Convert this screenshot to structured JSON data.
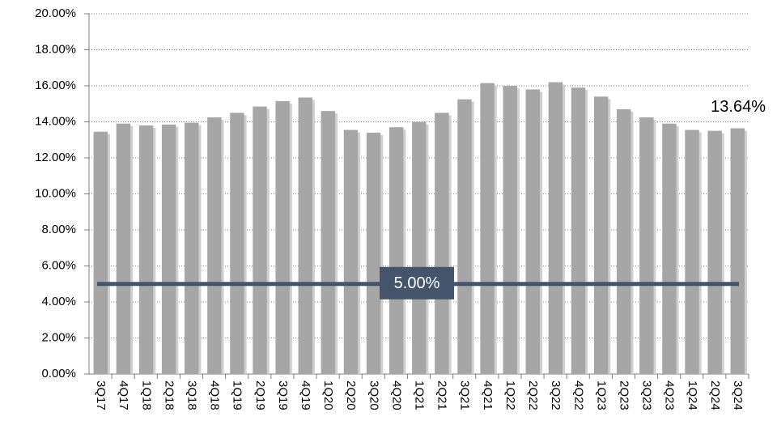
{
  "chart_data": {
    "type": "bar",
    "categories": [
      "3Q17",
      "4Q17",
      "1Q18",
      "2Q18",
      "3Q18",
      "4Q18",
      "1Q19",
      "2Q19",
      "3Q19",
      "4Q19",
      "1Q20",
      "2Q20",
      "3Q20",
      "4Q20",
      "1Q21",
      "2Q21",
      "3Q21",
      "4Q21",
      "1Q22",
      "2Q22",
      "3Q22",
      "4Q22",
      "1Q23",
      "2Q23",
      "3Q23",
      "4Q23",
      "1Q24",
      "2Q24",
      "3Q24"
    ],
    "values": [
      13.45,
      13.9,
      13.8,
      13.85,
      13.95,
      14.25,
      14.5,
      14.85,
      15.15,
      15.35,
      14.6,
      13.55,
      13.4,
      13.7,
      14.0,
      14.5,
      15.25,
      16.15,
      16.0,
      15.8,
      16.2,
      15.9,
      15.4,
      14.7,
      14.25,
      13.9,
      13.55,
      13.5,
      13.64
    ],
    "value_labels": [
      null,
      null,
      null,
      null,
      null,
      null,
      null,
      null,
      null,
      null,
      null,
      null,
      null,
      null,
      null,
      null,
      null,
      null,
      null,
      null,
      null,
      null,
      null,
      null,
      null,
      null,
      null,
      null,
      "13.64%"
    ],
    "color": "#a6a6a6",
    "ylim": [
      0,
      20
    ],
    "yticks": [
      {
        "value": 0,
        "label": "0.00%"
      },
      {
        "value": 2,
        "label": "2.00%"
      },
      {
        "value": 4,
        "label": "4.00%"
      },
      {
        "value": 6,
        "label": "6.00%"
      },
      {
        "value": 8,
        "label": "8.00%"
      },
      {
        "value": 10,
        "label": "10.00%"
      },
      {
        "value": 12,
        "label": "12.00%"
      },
      {
        "value": 14,
        "label": "14.00%"
      },
      {
        "value": 16,
        "label": "16.00%"
      },
      {
        "value": 18,
        "label": "18.00%"
      },
      {
        "value": 20,
        "label": "20.00%"
      }
    ],
    "grid": true,
    "reference_line": {
      "value": 5,
      "label": "5.00%",
      "color": "#44546a"
    }
  }
}
